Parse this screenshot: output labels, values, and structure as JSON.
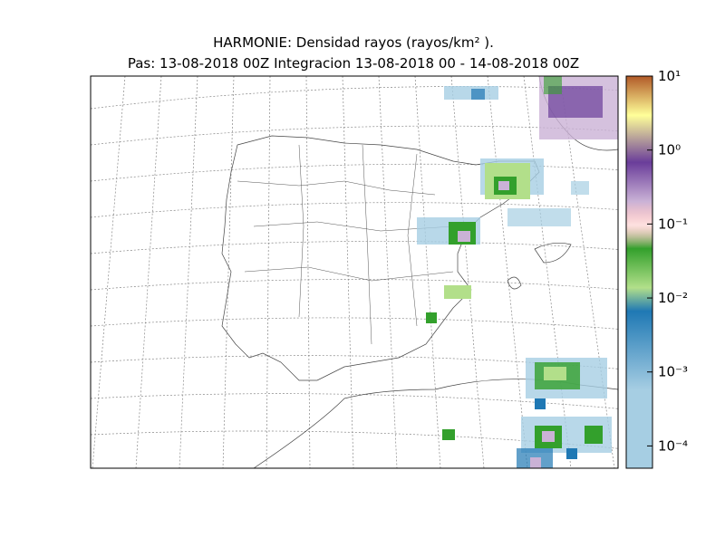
{
  "title": "HARMONIE: Densidad rayos  (rayos/km² ).",
  "subtitle": "Pas: 13-08-2018 00Z Integracion 13-08-2018 00 - 14-08-2018 00Z",
  "colorbar": {
    "scale": "log",
    "lim": [
      5e-05,
      10
    ],
    "ticks": [
      {
        "value": 0.0001,
        "label": "10⁻⁴"
      },
      {
        "value": 0.001,
        "label": "10⁻³"
      },
      {
        "value": 0.01,
        "label": "10⁻²"
      },
      {
        "value": 0.1,
        "label": "10⁻¹"
      },
      {
        "value": 1,
        "label": "10⁰"
      },
      {
        "value": 10,
        "label": "10¹"
      }
    ]
  }
}
